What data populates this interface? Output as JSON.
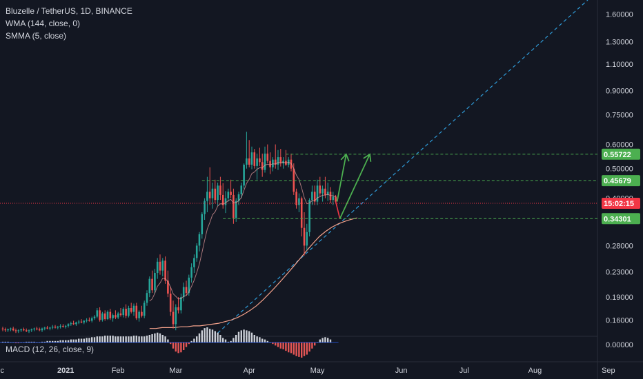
{
  "legend": {
    "title": "Bluzelle / TetherUS, 1D, BINANCE",
    "wma": "WMA (144, close, 0)",
    "smma": "SMMA (5, close)",
    "macd": "MACD (12, 26, close, 9)"
  },
  "colors": {
    "background": "#131722",
    "up": "#26a69a",
    "down": "#ef5350",
    "wma": "#f6a38c",
    "trendline": "#2f9bd8",
    "levels": "#4caf50",
    "current": "#f23645",
    "arrows": "#4caf50"
  },
  "chart_data": {
    "type": "candlestick",
    "y_scale": "log",
    "ylim": [
      0.14,
      1.78
    ],
    "y_ticks": [
      "1.60000",
      "1.30000",
      "1.10000",
      "0.90000",
      "0.75000",
      "0.60000",
      "0.50000",
      "0.40000",
      "0.28000",
      "0.23000",
      "0.19000",
      "0.16000"
    ],
    "macd_tick": "0.00000",
    "x_ticks": [
      "ec",
      "2021",
      "Feb",
      "Mar",
      "Apr",
      "May",
      "Jun",
      "Jul",
      "Aug",
      "Sep"
    ],
    "levels": [
      {
        "price": 0.55722,
        "label": "0.55722"
      },
      {
        "price": 0.45679,
        "label": "0.45679"
      },
      {
        "price": 0.34301,
        "label": "0.34301"
      }
    ],
    "current_price": 0.385,
    "countdown": "15:02:15",
    "candles_ohlc": [
      [
        0.15,
        0.152,
        0.147,
        0.149
      ],
      [
        0.149,
        0.151,
        0.146,
        0.148
      ],
      [
        0.148,
        0.15,
        0.146,
        0.149
      ],
      [
        0.149,
        0.151,
        0.147,
        0.15
      ],
      [
        0.15,
        0.152,
        0.147,
        0.148
      ],
      [
        0.148,
        0.15,
        0.145,
        0.147
      ],
      [
        0.147,
        0.149,
        0.145,
        0.148
      ],
      [
        0.148,
        0.15,
        0.146,
        0.149
      ],
      [
        0.149,
        0.151,
        0.147,
        0.148
      ],
      [
        0.148,
        0.15,
        0.146,
        0.147
      ],
      [
        0.147,
        0.149,
        0.145,
        0.148
      ],
      [
        0.148,
        0.15,
        0.146,
        0.149
      ],
      [
        0.149,
        0.151,
        0.147,
        0.15
      ],
      [
        0.15,
        0.152,
        0.148,
        0.149
      ],
      [
        0.149,
        0.151,
        0.147,
        0.148
      ],
      [
        0.148,
        0.151,
        0.146,
        0.15
      ],
      [
        0.15,
        0.152,
        0.148,
        0.151
      ],
      [
        0.151,
        0.153,
        0.149,
        0.15
      ],
      [
        0.15,
        0.152,
        0.148,
        0.151
      ],
      [
        0.151,
        0.154,
        0.149,
        0.152
      ],
      [
        0.152,
        0.154,
        0.15,
        0.151
      ],
      [
        0.151,
        0.153,
        0.149,
        0.152
      ],
      [
        0.152,
        0.155,
        0.15,
        0.153
      ],
      [
        0.153,
        0.155,
        0.151,
        0.152
      ],
      [
        0.152,
        0.154,
        0.15,
        0.153
      ],
      [
        0.153,
        0.156,
        0.151,
        0.155
      ],
      [
        0.155,
        0.158,
        0.153,
        0.156
      ],
      [
        0.156,
        0.159,
        0.154,
        0.155
      ],
      [
        0.155,
        0.158,
        0.153,
        0.157
      ],
      [
        0.157,
        0.16,
        0.155,
        0.158
      ],
      [
        0.158,
        0.161,
        0.156,
        0.157
      ],
      [
        0.157,
        0.16,
        0.155,
        0.159
      ],
      [
        0.159,
        0.162,
        0.157,
        0.16
      ],
      [
        0.16,
        0.163,
        0.158,
        0.159
      ],
      [
        0.159,
        0.164,
        0.157,
        0.162
      ],
      [
        0.162,
        0.166,
        0.16,
        0.164
      ],
      [
        0.164,
        0.175,
        0.162,
        0.172
      ],
      [
        0.172,
        0.176,
        0.158,
        0.16
      ],
      [
        0.16,
        0.17,
        0.158,
        0.168
      ],
      [
        0.168,
        0.172,
        0.159,
        0.161
      ],
      [
        0.161,
        0.172,
        0.16,
        0.17
      ],
      [
        0.17,
        0.174,
        0.16,
        0.162
      ],
      [
        0.162,
        0.168,
        0.158,
        0.166
      ],
      [
        0.166,
        0.172,
        0.161,
        0.163
      ],
      [
        0.163,
        0.17,
        0.161,
        0.168
      ],
      [
        0.168,
        0.175,
        0.164,
        0.166
      ],
      [
        0.166,
        0.176,
        0.163,
        0.174
      ],
      [
        0.174,
        0.18,
        0.162,
        0.165
      ],
      [
        0.165,
        0.178,
        0.163,
        0.175
      ],
      [
        0.175,
        0.182,
        0.168,
        0.17
      ],
      [
        0.17,
        0.181,
        0.165,
        0.178
      ],
      [
        0.178,
        0.182,
        0.16,
        0.162
      ],
      [
        0.162,
        0.172,
        0.158,
        0.17
      ],
      [
        0.17,
        0.178,
        0.163,
        0.165
      ],
      [
        0.165,
        0.185,
        0.162,
        0.182
      ],
      [
        0.182,
        0.2,
        0.178,
        0.196
      ],
      [
        0.196,
        0.222,
        0.19,
        0.218
      ],
      [
        0.218,
        0.232,
        0.196,
        0.2
      ],
      [
        0.2,
        0.235,
        0.195,
        0.228
      ],
      [
        0.228,
        0.255,
        0.218,
        0.248
      ],
      [
        0.248,
        0.262,
        0.225,
        0.232
      ],
      [
        0.232,
        0.255,
        0.222,
        0.25
      ],
      [
        0.25,
        0.258,
        0.21,
        0.215
      ],
      [
        0.215,
        0.232,
        0.19,
        0.195
      ],
      [
        0.195,
        0.205,
        0.165,
        0.17
      ],
      [
        0.17,
        0.185,
        0.15,
        0.155
      ],
      [
        0.155,
        0.18,
        0.148,
        0.176
      ],
      [
        0.176,
        0.19,
        0.168,
        0.172
      ],
      [
        0.172,
        0.195,
        0.168,
        0.19
      ],
      [
        0.19,
        0.212,
        0.184,
        0.205
      ],
      [
        0.205,
        0.215,
        0.192,
        0.196
      ],
      [
        0.196,
        0.225,
        0.192,
        0.22
      ],
      [
        0.22,
        0.245,
        0.212,
        0.238
      ],
      [
        0.238,
        0.262,
        0.228,
        0.255
      ],
      [
        0.255,
        0.285,
        0.248,
        0.28
      ],
      [
        0.28,
        0.31,
        0.268,
        0.305
      ],
      [
        0.305,
        0.36,
        0.295,
        0.355
      ],
      [
        0.355,
        0.4,
        0.34,
        0.392
      ],
      [
        0.392,
        0.47,
        0.36,
        0.42
      ],
      [
        0.42,
        0.505,
        0.38,
        0.4
      ],
      [
        0.4,
        0.45,
        0.37,
        0.43
      ],
      [
        0.43,
        0.46,
        0.385,
        0.395
      ],
      [
        0.395,
        0.45,
        0.378,
        0.44
      ],
      [
        0.44,
        0.47,
        0.395,
        0.41
      ],
      [
        0.41,
        0.448,
        0.37,
        0.38
      ],
      [
        0.38,
        0.422,
        0.358,
        0.4
      ],
      [
        0.4,
        0.43,
        0.39,
        0.42
      ],
      [
        0.42,
        0.46,
        0.4,
        0.41
      ],
      [
        0.41,
        0.43,
        0.33,
        0.345
      ],
      [
        0.345,
        0.4,
        0.335,
        0.392
      ],
      [
        0.392,
        0.42,
        0.38,
        0.412
      ],
      [
        0.412,
        0.45,
        0.4,
        0.44
      ],
      [
        0.44,
        0.52,
        0.43,
        0.515
      ],
      [
        0.515,
        0.66,
        0.5,
        0.54
      ],
      [
        0.54,
        0.62,
        0.505,
        0.515
      ],
      [
        0.515,
        0.59,
        0.498,
        0.565
      ],
      [
        0.565,
        0.58,
        0.5,
        0.51
      ],
      [
        0.51,
        0.56,
        0.46,
        0.54
      ],
      [
        0.54,
        0.585,
        0.51,
        0.525
      ],
      [
        0.525,
        0.56,
        0.47,
        0.495
      ],
      [
        0.495,
        0.59,
        0.485,
        0.56
      ],
      [
        0.56,
        0.6,
        0.52,
        0.53
      ],
      [
        0.53,
        0.565,
        0.48,
        0.505
      ],
      [
        0.505,
        0.545,
        0.49,
        0.535
      ],
      [
        0.535,
        0.6,
        0.5,
        0.515
      ],
      [
        0.515,
        0.575,
        0.495,
        0.545
      ],
      [
        0.545,
        0.58,
        0.508,
        0.52
      ],
      [
        0.52,
        0.545,
        0.5,
        0.53
      ],
      [
        0.53,
        0.575,
        0.51,
        0.515
      ],
      [
        0.515,
        0.545,
        0.505,
        0.535
      ],
      [
        0.535,
        0.56,
        0.49,
        0.5
      ],
      [
        0.5,
        0.52,
        0.41,
        0.42
      ],
      [
        0.42,
        0.43,
        0.37,
        0.38
      ],
      [
        0.38,
        0.415,
        0.36,
        0.4
      ],
      [
        0.4,
        0.405,
        0.3,
        0.32
      ],
      [
        0.32,
        0.36,
        0.26,
        0.28
      ],
      [
        0.28,
        0.33,
        0.27,
        0.31
      ],
      [
        0.31,
        0.4,
        0.3,
        0.395
      ],
      [
        0.395,
        0.44,
        0.38,
        0.42
      ],
      [
        0.42,
        0.44,
        0.38,
        0.39
      ],
      [
        0.39,
        0.46,
        0.38,
        0.44
      ],
      [
        0.44,
        0.47,
        0.405,
        0.415
      ],
      [
        0.415,
        0.44,
        0.39,
        0.43
      ],
      [
        0.43,
        0.47,
        0.4,
        0.41
      ],
      [
        0.41,
        0.45,
        0.392,
        0.42
      ],
      [
        0.42,
        0.435,
        0.385,
        0.395
      ],
      [
        0.395,
        0.42,
        0.38,
        0.405
      ],
      [
        0.405,
        0.41,
        0.385,
        0.39
      ]
    ],
    "wma_values": [
      0.15,
      0.15,
      0.151,
      0.151,
      0.151,
      0.152,
      0.152,
      0.153,
      0.153,
      0.154,
      0.155,
      0.156,
      0.158,
      0.16,
      0.163,
      0.167,
      0.172,
      0.178,
      0.186,
      0.195,
      0.205,
      0.216,
      0.228,
      0.241,
      0.255,
      0.27,
      0.285,
      0.3,
      0.312,
      0.322,
      0.33,
      0.336,
      0.341,
      0.345
    ],
    "wma_start_index": 56,
    "smma_values_from": 56,
    "macd_hist": [
      0.001,
      0.001,
      0.001,
      0.0,
      0.0,
      -0.001,
      -0.001,
      0.0,
      0.0,
      0.001,
      0.001,
      0.001,
      0.001,
      0.0,
      0.0,
      0.001,
      0.001,
      0.002,
      0.002,
      0.002,
      0.002,
      0.002,
      0.003,
      0.003,
      0.003,
      0.003,
      0.004,
      0.004,
      0.004,
      0.005,
      0.005,
      0.005,
      0.006,
      0.006,
      0.007,
      0.007,
      0.008,
      0.008,
      0.008,
      0.009,
      0.009,
      0.009,
      0.009,
      0.008,
      0.008,
      0.008,
      0.008,
      0.008,
      0.008,
      0.008,
      0.009,
      0.009,
      0.008,
      0.008,
      0.008,
      0.009,
      0.01,
      0.011,
      0.012,
      0.013,
      0.012,
      0.01,
      0.008,
      0.004,
      -0.002,
      -0.008,
      -0.012,
      -0.014,
      -0.013,
      -0.01,
      -0.006,
      -0.002,
      0.002,
      0.005,
      0.008,
      0.012,
      0.016,
      0.019,
      0.02,
      0.018,
      0.017,
      0.015,
      0.013,
      0.01,
      0.006,
      0.004,
      0.001,
      0.002,
      0.006,
      0.01,
      0.014,
      0.016,
      0.017,
      0.016,
      0.015,
      0.013,
      0.01,
      0.008,
      0.007,
      0.005,
      0.004,
      0.002,
      0.0,
      -0.002,
      -0.004,
      -0.006,
      -0.008,
      -0.009,
      -0.011,
      -0.013,
      -0.014,
      -0.016,
      -0.018,
      -0.019,
      -0.02,
      -0.018,
      -0.016,
      -0.012,
      -0.008,
      -0.004,
      0.0,
      0.004,
      0.006,
      0.007,
      0.006,
      0.004
    ]
  }
}
